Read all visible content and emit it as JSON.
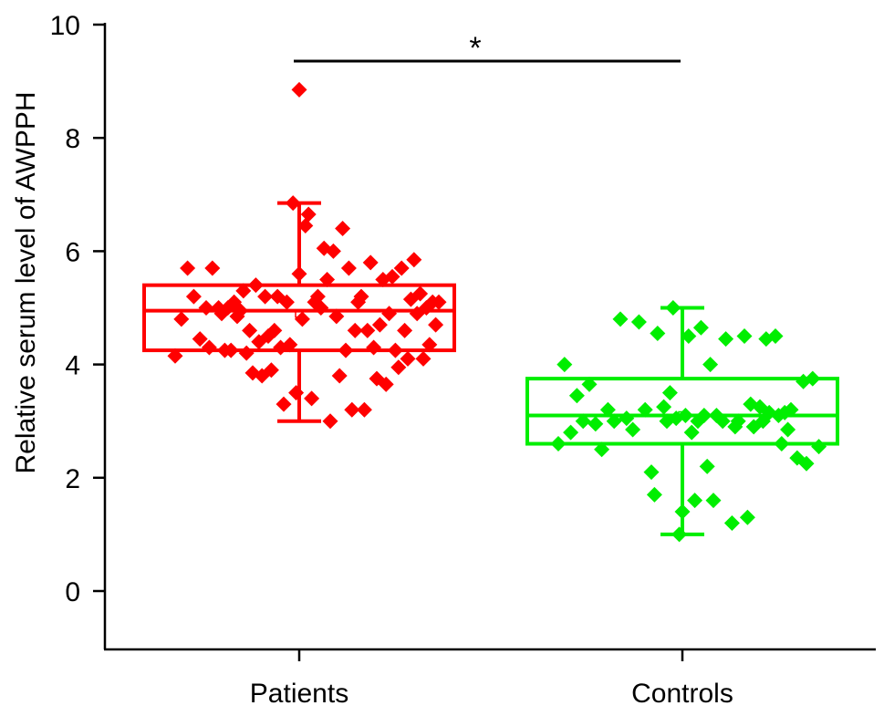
{
  "chart_data": {
    "type": "box",
    "ylabel": "Relative serum level of AWPPH",
    "xlabel": "",
    "ylim": [
      -1,
      10
    ],
    "yticks": [
      0,
      2,
      4,
      6,
      8,
      10
    ],
    "categories": [
      "Patients",
      "Controls"
    ],
    "grid": false,
    "significance": {
      "label": "*",
      "between": [
        "Patients",
        "Controls"
      ]
    },
    "series": [
      {
        "name": "Patients",
        "color": "#ff0000",
        "box": {
          "whisker_low": 3.0,
          "q1": 4.25,
          "median": 4.95,
          "q3": 5.4,
          "whisker_high": 6.85,
          "mean": 4.9
        },
        "points": [
          [
            -0.4,
            4.15
          ],
          [
            -0.38,
            4.8
          ],
          [
            -0.36,
            5.7
          ],
          [
            -0.34,
            5.2
          ],
          [
            -0.32,
            4.45
          ],
          [
            -0.3,
            5.0
          ],
          [
            -0.29,
            4.3
          ],
          [
            -0.28,
            5.7
          ],
          [
            -0.26,
            5.0
          ],
          [
            -0.25,
            4.9
          ],
          [
            -0.24,
            4.25
          ],
          [
            -0.23,
            5.0
          ],
          [
            -0.22,
            4.25
          ],
          [
            -0.21,
            5.1
          ],
          [
            -0.2,
            4.85
          ],
          [
            -0.19,
            4.95
          ],
          [
            -0.18,
            5.3
          ],
          [
            -0.17,
            4.2
          ],
          [
            -0.16,
            4.6
          ],
          [
            -0.15,
            3.85
          ],
          [
            -0.14,
            5.4
          ],
          [
            -0.13,
            4.4
          ],
          [
            -0.12,
            3.8
          ],
          [
            -0.11,
            5.2
          ],
          [
            -0.1,
            4.5
          ],
          [
            -0.09,
            3.9
          ],
          [
            -0.08,
            4.6
          ],
          [
            -0.07,
            5.2
          ],
          [
            -0.06,
            4.3
          ],
          [
            -0.05,
            3.3
          ],
          [
            -0.04,
            5.1
          ],
          [
            -0.03,
            4.35
          ],
          [
            -0.02,
            6.85
          ],
          [
            -0.01,
            3.5
          ],
          [
            0.0,
            5.6
          ],
          [
            0.01,
            4.8
          ],
          [
            0.02,
            6.45
          ],
          [
            0.03,
            6.65
          ],
          [
            0.04,
            3.4
          ],
          [
            0.05,
            5.1
          ],
          [
            0.06,
            5.2
          ],
          [
            0.07,
            5.0
          ],
          [
            0.08,
            6.05
          ],
          [
            0.09,
            5.5
          ],
          [
            0.1,
            3.0
          ],
          [
            0.11,
            6.0
          ],
          [
            0.12,
            4.85
          ],
          [
            0.13,
            3.8
          ],
          [
            0.14,
            6.4
          ],
          [
            0.15,
            4.25
          ],
          [
            0.16,
            5.7
          ],
          [
            0.17,
            3.2
          ],
          [
            0.18,
            4.6
          ],
          [
            0.19,
            5.1
          ],
          [
            0.2,
            5.2
          ],
          [
            0.21,
            3.2
          ],
          [
            0.22,
            4.6
          ],
          [
            0.23,
            5.8
          ],
          [
            0.24,
            4.3
          ],
          [
            0.25,
            3.75
          ],
          [
            0.26,
            4.7
          ],
          [
            0.27,
            5.5
          ],
          [
            0.28,
            3.65
          ],
          [
            0.29,
            4.9
          ],
          [
            0.3,
            5.55
          ],
          [
            0.31,
            4.25
          ],
          [
            0.32,
            3.95
          ],
          [
            0.33,
            5.7
          ],
          [
            0.34,
            4.6
          ],
          [
            0.35,
            4.1
          ],
          [
            0.36,
            5.15
          ],
          [
            0.37,
            5.85
          ],
          [
            0.38,
            4.9
          ],
          [
            0.39,
            5.25
          ],
          [
            0.4,
            4.1
          ],
          [
            0.41,
            5.0
          ],
          [
            0.42,
            4.35
          ],
          [
            0.43,
            5.1
          ],
          [
            0.44,
            4.7
          ],
          [
            0.45,
            5.1
          ],
          [
            0.0,
            8.85
          ]
        ]
      },
      {
        "name": "Controls",
        "color": "#00ee00",
        "box": {
          "whisker_low": 1.0,
          "q1": 2.6,
          "median": 3.1,
          "q3": 3.75,
          "whisker_high": 5.0,
          "mean": 3.1
        },
        "points": [
          [
            -0.4,
            2.6
          ],
          [
            -0.38,
            4.0
          ],
          [
            -0.36,
            2.8
          ],
          [
            -0.34,
            3.45
          ],
          [
            -0.32,
            3.0
          ],
          [
            -0.3,
            3.65
          ],
          [
            -0.28,
            2.95
          ],
          [
            -0.26,
            2.5
          ],
          [
            -0.24,
            3.2
          ],
          [
            -0.22,
            3.0
          ],
          [
            -0.2,
            4.8
          ],
          [
            -0.18,
            3.05
          ],
          [
            -0.16,
            2.85
          ],
          [
            -0.14,
            4.75
          ],
          [
            -0.12,
            3.2
          ],
          [
            -0.1,
            2.1
          ],
          [
            -0.09,
            1.7
          ],
          [
            -0.08,
            4.55
          ],
          [
            -0.06,
            3.25
          ],
          [
            -0.05,
            3.0
          ],
          [
            -0.04,
            3.5
          ],
          [
            -0.03,
            5.0
          ],
          [
            -0.02,
            3.05
          ],
          [
            -0.01,
            1.0
          ],
          [
            0.0,
            1.4
          ],
          [
            0.01,
            3.1
          ],
          [
            0.02,
            4.5
          ],
          [
            0.03,
            2.8
          ],
          [
            0.04,
            1.6
          ],
          [
            0.05,
            3.0
          ],
          [
            0.06,
            4.65
          ],
          [
            0.07,
            3.1
          ],
          [
            0.08,
            2.2
          ],
          [
            0.09,
            4.0
          ],
          [
            0.1,
            1.6
          ],
          [
            0.11,
            3.1
          ],
          [
            0.13,
            3.0
          ],
          [
            0.14,
            4.45
          ],
          [
            0.16,
            1.2
          ],
          [
            0.17,
            2.9
          ],
          [
            0.18,
            3.0
          ],
          [
            0.2,
            4.5
          ],
          [
            0.21,
            1.3
          ],
          [
            0.22,
            3.3
          ],
          [
            0.23,
            2.9
          ],
          [
            0.25,
            3.25
          ],
          [
            0.26,
            3.0
          ],
          [
            0.27,
            4.45
          ],
          [
            0.28,
            3.15
          ],
          [
            0.3,
            4.5
          ],
          [
            0.31,
            3.1
          ],
          [
            0.32,
            2.6
          ],
          [
            0.33,
            3.15
          ],
          [
            0.34,
            2.85
          ],
          [
            0.35,
            3.2
          ],
          [
            0.37,
            2.35
          ],
          [
            0.39,
            3.7
          ],
          [
            0.4,
            2.25
          ],
          [
            0.42,
            3.75
          ],
          [
            0.44,
            2.55
          ]
        ]
      }
    ]
  }
}
